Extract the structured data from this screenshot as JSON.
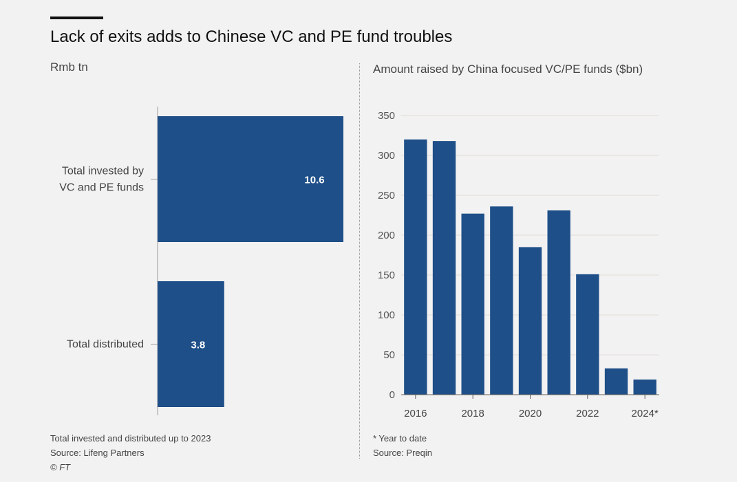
{
  "title": "Lack of exits adds to Chinese VC and PE fund troubles",
  "colors": {
    "bar": "#1e4f88",
    "background": "#f2f2f2",
    "grid": "#e3dcd6"
  },
  "left_panel": {
    "subtitle": "Rmb tn",
    "note": "Total invested and distributed up to 2023",
    "source": "Source: Lifeng Partners",
    "copyright": "© FT"
  },
  "right_panel": {
    "subtitle": "Amount raised by China focused VC/PE funds ($bn)",
    "footnote": "* Year to date",
    "source": "Source: Preqin"
  },
  "chart_data": [
    {
      "type": "bar",
      "orientation": "horizontal",
      "title": "",
      "units": "Rmb tn",
      "categories": [
        [
          "Total invested by",
          "VC and PE funds"
        ],
        [
          "Total distributed"
        ]
      ],
      "values": [
        10.6,
        3.8
      ],
      "value_labels": [
        "10.6",
        "3.8"
      ],
      "xlim": [
        0,
        10.6
      ]
    },
    {
      "type": "bar",
      "title": "Amount raised by China focused VC/PE funds ($bn)",
      "years": [
        2016,
        2017,
        2018,
        2019,
        2020,
        2021,
        2022,
        2023,
        2024
      ],
      "values": [
        320,
        318,
        227,
        236,
        185,
        231,
        151,
        33,
        19
      ],
      "ylim": [
        0,
        350
      ],
      "yticks": [
        0,
        50,
        100,
        150,
        200,
        250,
        300,
        350
      ],
      "xtick_labels": [
        "2016",
        "",
        "2018",
        "",
        "2020",
        "",
        "2022",
        "",
        "2024*"
      ],
      "grid": true
    }
  ]
}
